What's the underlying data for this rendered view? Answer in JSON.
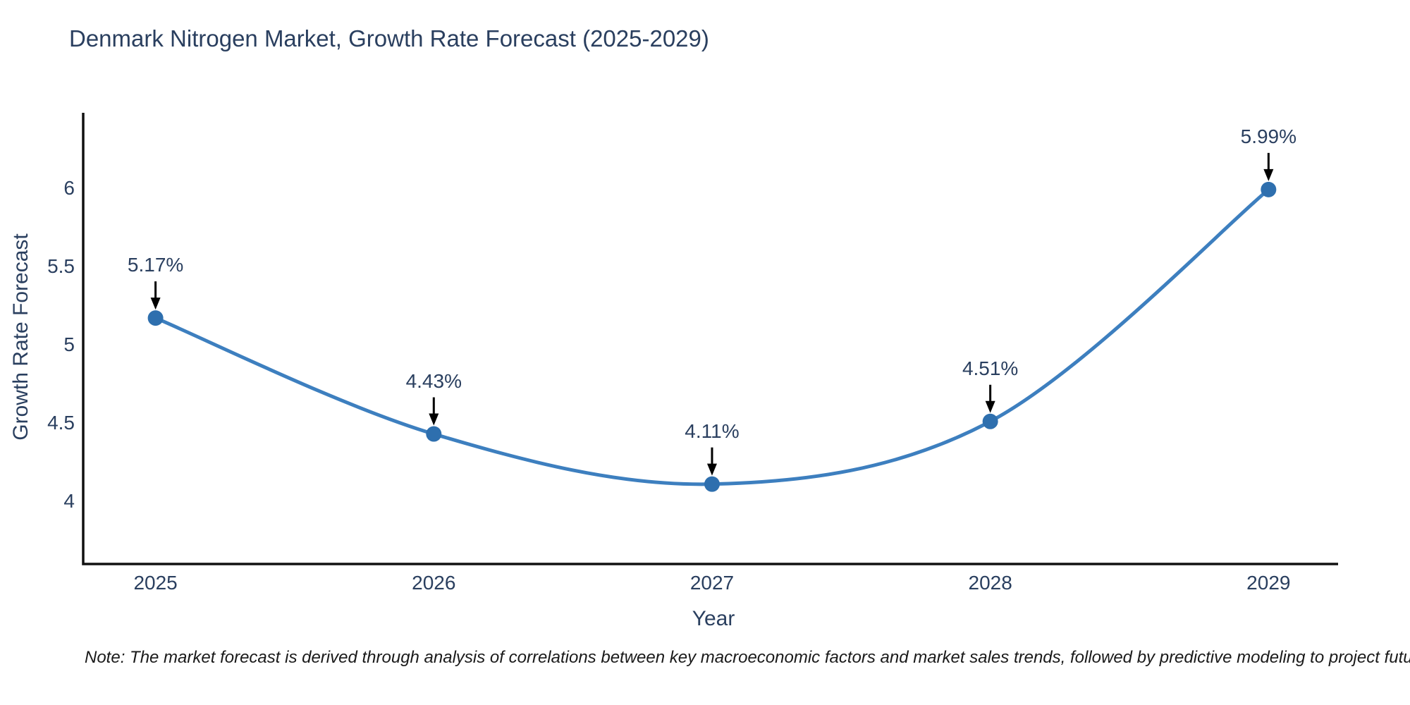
{
  "note": "Note: The market forecast is derived through analysis of correlations between key macroeconomic factors and market sales trends, followed by predictive modeling to project future sales",
  "chart_data": {
    "type": "line",
    "title": "Denmark Nitrogen Market, Growth Rate Forecast (2025-2029)",
    "xlabel": "Year",
    "ylabel": "Growth Rate Forecast",
    "x": [
      2025,
      2026,
      2027,
      2028,
      2029
    ],
    "series": [
      {
        "name": "Growth Rate Forecast",
        "values": [
          5.17,
          4.43,
          4.11,
          4.51,
          5.99
        ],
        "labels": [
          "5.17%",
          "4.43%",
          "4.11%",
          "4.51%",
          "5.99%"
        ]
      }
    ],
    "xticks": [
      "2025",
      "2026",
      "2027",
      "2028",
      "2029"
    ],
    "yticks": [
      {
        "value": 4,
        "label": "4"
      },
      {
        "value": 4.5,
        "label": "4.5"
      },
      {
        "value": 5,
        "label": "5"
      },
      {
        "value": 5.5,
        "label": "5.5"
      },
      {
        "value": 6,
        "label": "6"
      }
    ],
    "xlim": [
      2024.74,
      2029.25
    ],
    "ylim": [
      3.6,
      6.48
    ],
    "line_shape": "spline",
    "grid": false,
    "legend_position": "none",
    "annotations_have_arrows": true
  },
  "colors": {
    "line": "#3d7fbf",
    "marker": "#2e6fae",
    "axis": "#111111",
    "arrow": "#000000",
    "text": "#2a3f5f",
    "note_text": "#1a1a1a",
    "background": "#ffffff"
  }
}
